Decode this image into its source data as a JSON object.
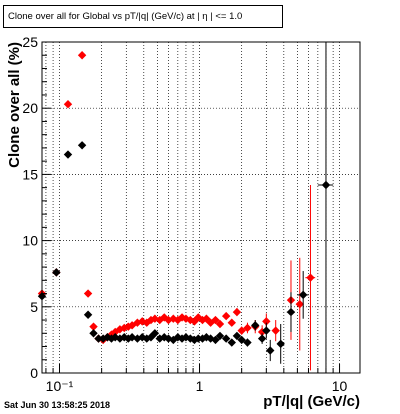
{
  "chart_data": {
    "type": "scatter",
    "title": "Clone  over all for Global vs pT/|q| (GeV/c) at | η | <= 1.0",
    "xlabel": "pT/|q| (GeV/c)",
    "ylabel": "Clone  over all (%)",
    "xscale": "log",
    "xlim": [
      0.075,
      14
    ],
    "ylim": [
      0,
      25
    ],
    "xticks": [
      {
        "value": 0.1,
        "label": "10⁻¹"
      },
      {
        "value": 1,
        "label": "1"
      },
      {
        "value": 10,
        "label": "10"
      }
    ],
    "yticks": [
      0,
      5,
      10,
      15,
      20,
      25
    ],
    "grid": true,
    "series": [
      {
        "color": "#ff0000",
        "points": [
          [
            0.075,
            6.0,
            0.003,
            0
          ],
          [
            0.095,
            7.6,
            0.005,
            0
          ],
          [
            0.115,
            20.3,
            0.005,
            0
          ],
          [
            0.145,
            24.0,
            0.005,
            0
          ],
          [
            0.16,
            6.0,
            0.004,
            0
          ],
          [
            0.175,
            3.5,
            0.004,
            0
          ],
          [
            0.19,
            2.6,
            0.003,
            0
          ],
          [
            0.205,
            2.5,
            0.003,
            0
          ],
          [
            0.22,
            2.7,
            0.003,
            0
          ],
          [
            0.235,
            2.9,
            0.003,
            0
          ],
          [
            0.25,
            3.1,
            0.003,
            0
          ],
          [
            0.27,
            3.3,
            0.004,
            0
          ],
          [
            0.29,
            3.4,
            0.004,
            0
          ],
          [
            0.31,
            3.5,
            0.004,
            0
          ],
          [
            0.33,
            3.6,
            0.004,
            0
          ],
          [
            0.36,
            3.8,
            0.005,
            0
          ],
          [
            0.39,
            3.9,
            0.005,
            0
          ],
          [
            0.42,
            3.8,
            0.005,
            0
          ],
          [
            0.45,
            4.0,
            0.005,
            0
          ],
          [
            0.48,
            4.1,
            0.006,
            0
          ],
          [
            0.52,
            4.0,
            0.006,
            0
          ],
          [
            0.56,
            4.2,
            0.007,
            0
          ],
          [
            0.6,
            4.0,
            0.007,
            0
          ],
          [
            0.65,
            4.1,
            0.008,
            0
          ],
          [
            0.7,
            4.0,
            0.008,
            0
          ],
          [
            0.75,
            4.2,
            0.009,
            0
          ],
          [
            0.8,
            4.1,
            0.01,
            0
          ],
          [
            0.86,
            4.0,
            0.01,
            0
          ],
          [
            0.92,
            3.9,
            0.01,
            0
          ],
          [
            0.98,
            4.2,
            0.01,
            0
          ],
          [
            1.05,
            4.0,
            0.015,
            0
          ],
          [
            1.12,
            4.1,
            0.015,
            0
          ],
          [
            1.2,
            3.8,
            0.015,
            0
          ],
          [
            1.3,
            4.0,
            0.02,
            0
          ],
          [
            1.4,
            3.7,
            0.02,
            0
          ],
          [
            1.55,
            4.3,
            0.02,
            0
          ],
          [
            1.7,
            3.8,
            0.02,
            0
          ],
          [
            1.85,
            4.6,
            0.03,
            0.3
          ],
          [
            2.0,
            3.2,
            0.03,
            0.3
          ],
          [
            2.2,
            3.4,
            0.04,
            0.4
          ],
          [
            2.5,
            3.5,
            0.05,
            0.5
          ],
          [
            2.8,
            3.1,
            0.05,
            0.5
          ],
          [
            3.0,
            3.9,
            0.1,
            0.6
          ],
          [
            3.5,
            3.2,
            0.1,
            0.8
          ],
          [
            4.5,
            5.5,
            0.2,
            3.0
          ],
          [
            5.2,
            5.2,
            0.3,
            3.5
          ],
          [
            6.2,
            7.2,
            0.5,
            7.0
          ]
        ]
      },
      {
        "color": "#000000",
        "points": [
          [
            0.075,
            5.8,
            0.003,
            0
          ],
          [
            0.095,
            7.6,
            0.005,
            0
          ],
          [
            0.115,
            16.5,
            0.005,
            0
          ],
          [
            0.145,
            17.2,
            0.005,
            0
          ],
          [
            0.16,
            4.4,
            0.004,
            0
          ],
          [
            0.175,
            3.0,
            0.004,
            0
          ],
          [
            0.19,
            2.6,
            0.003,
            0
          ],
          [
            0.205,
            2.6,
            0.003,
            0
          ],
          [
            0.22,
            2.7,
            0.003,
            0
          ],
          [
            0.235,
            2.6,
            0.003,
            0
          ],
          [
            0.25,
            2.7,
            0.003,
            0
          ],
          [
            0.27,
            2.6,
            0.004,
            0
          ],
          [
            0.29,
            2.7,
            0.004,
            0
          ],
          [
            0.31,
            2.6,
            0.004,
            0
          ],
          [
            0.33,
            2.7,
            0.004,
            0
          ],
          [
            0.36,
            2.6,
            0.005,
            0
          ],
          [
            0.39,
            2.7,
            0.005,
            0
          ],
          [
            0.42,
            2.6,
            0.005,
            0
          ],
          [
            0.45,
            2.7,
            0.005,
            0
          ],
          [
            0.48,
            3.0,
            0.006,
            0
          ],
          [
            0.52,
            2.6,
            0.006,
            0
          ],
          [
            0.56,
            2.7,
            0.007,
            0
          ],
          [
            0.6,
            2.6,
            0.007,
            0
          ],
          [
            0.65,
            2.5,
            0.008,
            0
          ],
          [
            0.7,
            2.7,
            0.008,
            0
          ],
          [
            0.75,
            2.6,
            0.009,
            0
          ],
          [
            0.8,
            2.7,
            0.01,
            0
          ],
          [
            0.86,
            2.6,
            0.01,
            0
          ],
          [
            0.92,
            2.5,
            0.01,
            0
          ],
          [
            0.98,
            2.6,
            0.01,
            0
          ],
          [
            1.05,
            2.6,
            0.015,
            0
          ],
          [
            1.12,
            2.7,
            0.015,
            0
          ],
          [
            1.2,
            2.6,
            0.015,
            0
          ],
          [
            1.3,
            2.5,
            0.02,
            0
          ],
          [
            1.4,
            2.8,
            0.02,
            0
          ],
          [
            1.55,
            2.6,
            0.02,
            0
          ],
          [
            1.7,
            2.3,
            0.02,
            0
          ],
          [
            1.85,
            2.8,
            0.03,
            0
          ],
          [
            2.0,
            2.5,
            0.03,
            0
          ],
          [
            2.2,
            2.3,
            0.04,
            0.3
          ],
          [
            2.5,
            3.6,
            0.05,
            0.4
          ],
          [
            2.8,
            2.6,
            0.05,
            0.4
          ],
          [
            3.0,
            3.2,
            0.1,
            0.6
          ],
          [
            3.2,
            1.7,
            0.1,
            0.8
          ],
          [
            3.8,
            2.2,
            0.2,
            1.5
          ],
          [
            4.5,
            4.6,
            0.3,
            1.5
          ],
          [
            5.5,
            5.9,
            0.5,
            1.8
          ],
          [
            8.0,
            14.2,
            1.0,
            14.2
          ]
        ]
      }
    ]
  },
  "footer": {
    "timestamp": "Sat Jun 30 13:58:25 2018"
  }
}
